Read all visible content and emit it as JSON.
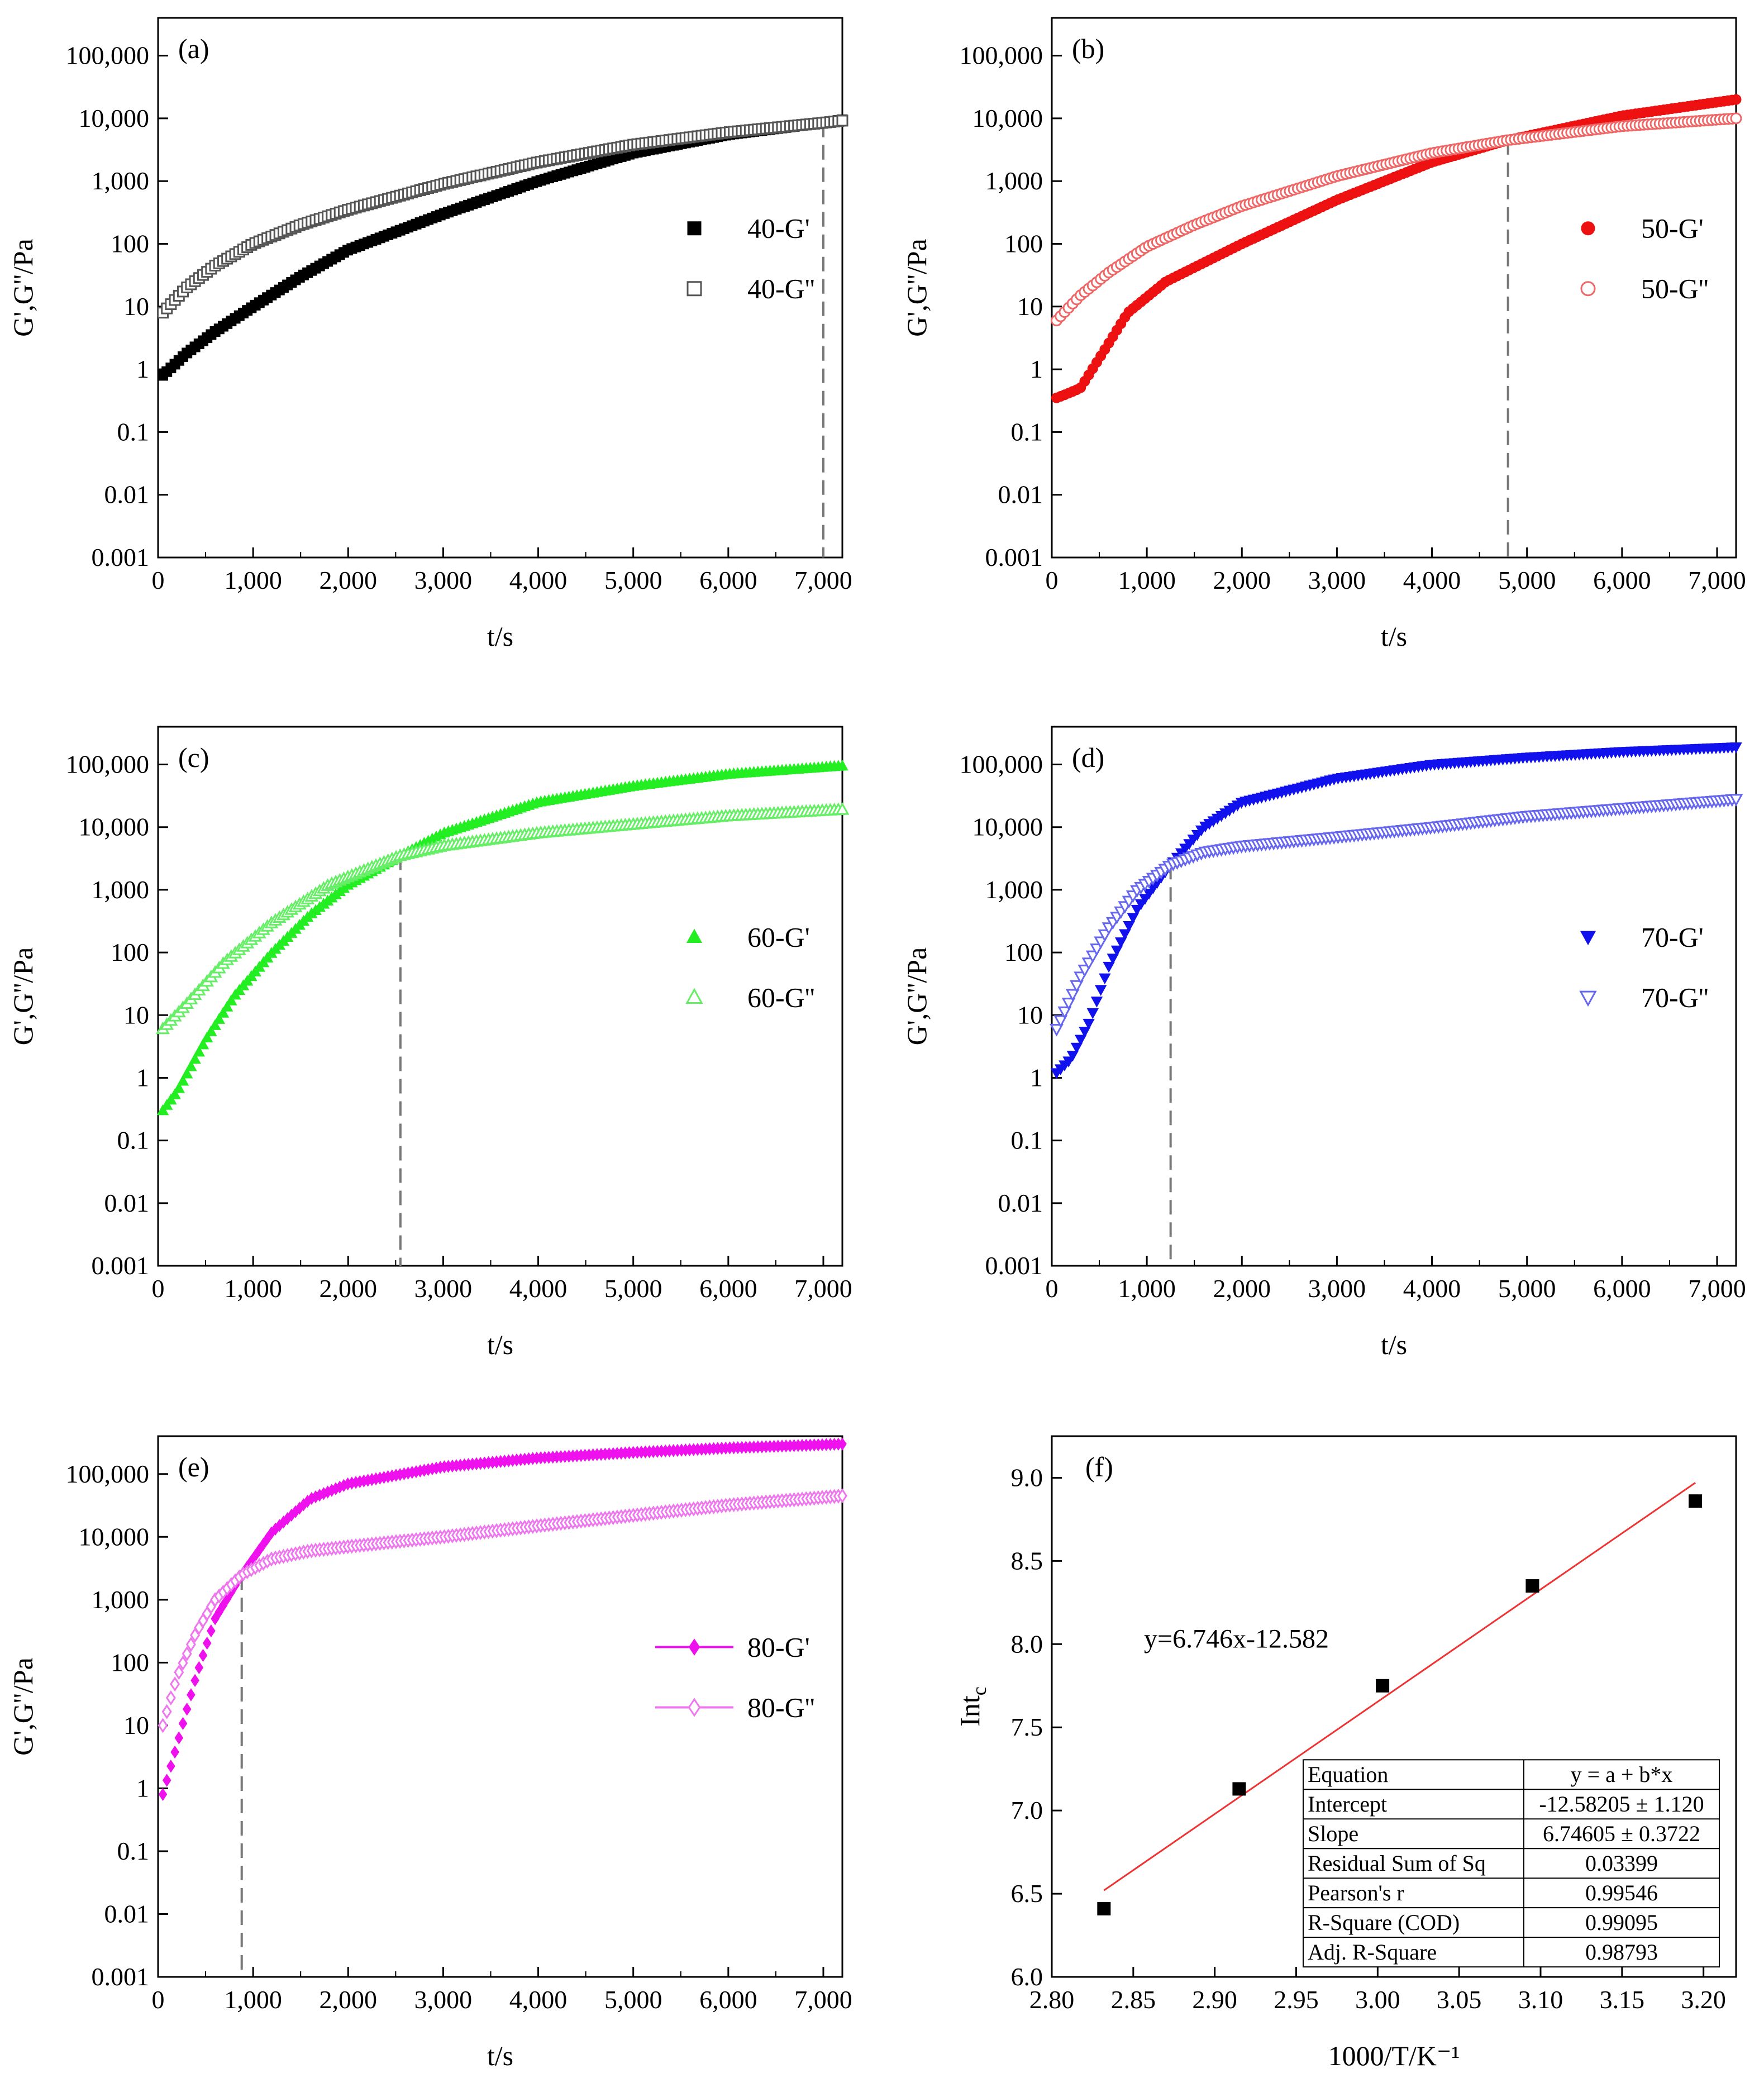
{
  "chart_data": [
    {
      "panel": "(a)",
      "type": "scatter",
      "yscale": "log",
      "xlabel": "t/s",
      "ylabel": "G',G''/Pa",
      "xlim": [
        0,
        7200
      ],
      "ylim": [
        0.001,
        400000
      ],
      "xticks": [
        0,
        1000,
        2000,
        3000,
        4000,
        5000,
        6000,
        7000
      ],
      "xtick_labels": [
        "0",
        "1,000",
        "2,000",
        "3,000",
        "4,000",
        "5,000",
        "6,000",
        "7,000"
      ],
      "yticks": [
        0.001,
        0.01,
        0.1,
        1,
        10,
        100,
        1000,
        10000,
        100000
      ],
      "ytick_labels": [
        "0.001",
        "0.01",
        "0.1",
        "1",
        "10",
        "100",
        "1,000",
        "10,000",
        "100,000"
      ],
      "legend_position": "right-middle",
      "crossover_t": 7000,
      "series": [
        {
          "name": "40-G'",
          "color": "#000000",
          "marker": "square",
          "filled": true,
          "x": [
            50,
            300,
            600,
            1000,
            1500,
            2000,
            3000,
            4000,
            5000,
            6000,
            7000,
            7200
          ],
          "y": [
            0.8,
            1.8,
            4,
            10,
            30,
            80,
            300,
            1000,
            2800,
            5500,
            8500,
            9500
          ]
        },
        {
          "name": "40-G''",
          "color": "#555555",
          "marker": "square",
          "filled": false,
          "x": [
            50,
            300,
            600,
            1000,
            1500,
            2000,
            3000,
            4000,
            5000,
            6000,
            7000,
            7200
          ],
          "y": [
            8,
            20,
            45,
            100,
            200,
            350,
            900,
            2000,
            3800,
            6000,
            8500,
            9200
          ]
        }
      ]
    },
    {
      "panel": "(b)",
      "type": "scatter",
      "yscale": "log",
      "xlabel": "t/s",
      "ylabel": "G',G''/Pa",
      "xlim": [
        0,
        7200
      ],
      "ylim": [
        0.001,
        400000
      ],
      "xticks": [
        0,
        1000,
        2000,
        3000,
        4000,
        5000,
        6000,
        7000
      ],
      "xtick_labels": [
        "0",
        "1,000",
        "2,000",
        "3,000",
        "4,000",
        "5,000",
        "6,000",
        "7,000"
      ],
      "yticks": [
        0.001,
        0.01,
        0.1,
        1,
        10,
        100,
        1000,
        10000,
        100000
      ],
      "ytick_labels": [
        "0.001",
        "0.01",
        "0.1",
        "1",
        "10",
        "100",
        "1,000",
        "10,000",
        "100,000"
      ],
      "legend_position": "right-middle",
      "crossover_t": 4800,
      "series": [
        {
          "name": "50-G'",
          "color": "#ee1111",
          "marker": "circle",
          "filled": true,
          "x": [
            50,
            150,
            300,
            500,
            800,
            1200,
            2000,
            3000,
            4000,
            4800,
            6000,
            7200
          ],
          "y": [
            0.35,
            0.4,
            0.5,
            1.5,
            8,
            25,
            100,
            500,
            2000,
            4500,
            11000,
            20000
          ]
        },
        {
          "name": "50-G''",
          "color": "#ee6666",
          "marker": "circle",
          "filled": false,
          "x": [
            50,
            300,
            600,
            1000,
            1500,
            2000,
            3000,
            4000,
            4800,
            6000,
            7200
          ],
          "y": [
            6,
            15,
            35,
            90,
            200,
            400,
            1200,
            2800,
            4500,
            7500,
            10000
          ]
        }
      ]
    },
    {
      "panel": "(c)",
      "type": "scatter",
      "yscale": "log",
      "xlabel": "t/s",
      "ylabel": "G',G''/Pa",
      "xlim": [
        0,
        7200
      ],
      "ylim": [
        0.001,
        400000
      ],
      "xticks": [
        0,
        1000,
        2000,
        3000,
        4000,
        5000,
        6000,
        7000
      ],
      "xtick_labels": [
        "0",
        "1,000",
        "2,000",
        "3,000",
        "4,000",
        "5,000",
        "6,000",
        "7,000"
      ],
      "yticks": [
        0.001,
        0.01,
        0.1,
        1,
        10,
        100,
        1000,
        10000,
        100000
      ],
      "ytick_labels": [
        "0.001",
        "0.01",
        "0.1",
        "1",
        "10",
        "100",
        "1,000",
        "10,000",
        "100,000"
      ],
      "legend_position": "right-middle",
      "crossover_t": 2550,
      "series": [
        {
          "name": "60-G'",
          "color": "#22ee22",
          "marker": "triangle-up",
          "filled": true,
          "x": [
            50,
            200,
            500,
            800,
            1200,
            1600,
            2000,
            2550,
            3000,
            4000,
            5000,
            6000,
            7200
          ],
          "y": [
            0.3,
            0.6,
            4,
            20,
            100,
            400,
            1200,
            3500,
            8000,
            25000,
            45000,
            70000,
            95000
          ]
        },
        {
          "name": "60-G''",
          "color": "#66ee66",
          "marker": "triangle-up",
          "filled": false,
          "x": [
            50,
            300,
            700,
            1200,
            1800,
            2550,
            3000,
            4000,
            5000,
            6000,
            7200
          ],
          "y": [
            6,
            15,
            70,
            300,
            1200,
            3500,
            5000,
            8000,
            11000,
            15000,
            19000
          ]
        }
      ]
    },
    {
      "panel": "(d)",
      "type": "scatter",
      "yscale": "log",
      "xlabel": "t/s",
      "ylabel": "G',G''/Pa",
      "xlim": [
        0,
        7200
      ],
      "ylim": [
        0.001,
        400000
      ],
      "xticks": [
        0,
        1000,
        2000,
        3000,
        4000,
        5000,
        6000,
        7000
      ],
      "xtick_labels": [
        "0",
        "1,000",
        "2,000",
        "3,000",
        "4,000",
        "5,000",
        "6,000",
        "7,000"
      ],
      "yticks": [
        0.001,
        0.01,
        0.1,
        1,
        10,
        100,
        1000,
        10000,
        100000
      ],
      "ytick_labels": [
        "0.001",
        "0.01",
        "0.1",
        "1",
        "10",
        "100",
        "1,000",
        "10,000",
        "100,000"
      ],
      "legend_position": "right-middle",
      "crossover_t": 1250,
      "series": [
        {
          "name": "70-G'",
          "color": "#1111ee",
          "marker": "triangle-down",
          "filled": true,
          "x": [
            50,
            200,
            400,
            600,
            900,
            1250,
            1600,
            2000,
            3000,
            4000,
            5000,
            6000,
            7200
          ],
          "y": [
            1.2,
            2,
            8,
            60,
            500,
            2500,
            10000,
            25000,
            60000,
            100000,
            130000,
            160000,
            190000
          ]
        },
        {
          "name": "70-G''",
          "color": "#6666ee",
          "marker": "triangle-down",
          "filled": false,
          "x": [
            50,
            300,
            600,
            900,
            1250,
            1600,
            2000,
            3000,
            4000,
            5000,
            6000,
            7200
          ],
          "y": [
            6,
            40,
            250,
            1000,
            2500,
            4000,
            5000,
            7000,
            10000,
            15000,
            20000,
            28000
          ]
        }
      ]
    },
    {
      "panel": "(e)",
      "type": "scatter",
      "yscale": "log",
      "xlabel": "t/s",
      "ylabel": "G',G''/Pa",
      "xlim": [
        0,
        7200
      ],
      "ylim": [
        0.001,
        400000
      ],
      "xticks": [
        0,
        1000,
        2000,
        3000,
        4000,
        5000,
        6000,
        7000
      ],
      "xtick_labels": [
        "0",
        "1,000",
        "2,000",
        "3,000",
        "4,000",
        "5,000",
        "6,000",
        "7,000"
      ],
      "yticks": [
        0.001,
        0.01,
        0.1,
        1,
        10,
        100,
        1000,
        10000,
        100000
      ],
      "ytick_labels": [
        "0.001",
        "0.01",
        "0.1",
        "1",
        "10",
        "100",
        "1,000",
        "10,000",
        "100,000"
      ],
      "legend_position": "right-middle",
      "legend_style": "line-marker",
      "crossover_t": 880,
      "series": [
        {
          "name": "80-G'",
          "color": "#ee11ee",
          "marker": "diamond",
          "filled": true,
          "x": [
            50,
            200,
            400,
            600,
            880,
            1200,
            1600,
            2000,
            3000,
            4000,
            5000,
            6000,
            7200
          ],
          "y": [
            0.8,
            5,
            60,
            500,
            2500,
            12000,
            40000,
            70000,
            130000,
            180000,
            220000,
            260000,
            300000
          ]
        },
        {
          "name": "80-G''",
          "color": "#ee77ee",
          "marker": "diamond",
          "filled": false,
          "x": [
            50,
            200,
            400,
            600,
            880,
            1200,
            1600,
            2000,
            3000,
            4000,
            5000,
            6000,
            7200
          ],
          "y": [
            10,
            60,
            300,
            1000,
            2500,
            4500,
            6000,
            7000,
            10000,
            15000,
            22000,
            32000,
            45000
          ]
        }
      ]
    },
    {
      "panel": "(f)",
      "type": "scatter",
      "xlabel": "1000/T/K⁻¹",
      "ylabel_main": "Int",
      "ylabel_sub": "c",
      "xlim": [
        2.8,
        3.22
      ],
      "ylim": [
        6.0,
        9.25
      ],
      "xticks": [
        2.8,
        2.85,
        2.9,
        2.95,
        3.0,
        3.05,
        3.1,
        3.15,
        3.2
      ],
      "xtick_labels": [
        "2.80",
        "2.85",
        "2.90",
        "2.95",
        "3.00",
        "3.05",
        "3.10",
        "3.15",
        "3.20"
      ],
      "yticks": [
        6.0,
        6.5,
        7.0,
        7.5,
        8.0,
        8.5,
        9.0
      ],
      "ytick_labels": [
        "6.0",
        "6.5",
        "7.0",
        "7.5",
        "8.0",
        "8.5",
        "9.0"
      ],
      "points": {
        "x": [
          2.832,
          2.915,
          3.003,
          3.095,
          3.195
        ],
        "y": [
          6.41,
          7.13,
          7.75,
          8.35,
          8.86
        ],
        "color": "#000000"
      },
      "fit": {
        "x": [
          2.832,
          3.195
        ],
        "y": [
          6.52,
          8.97
        ],
        "color": "#ee3333"
      },
      "equation_label": "y=6.746x-12.582",
      "stats_table": [
        [
          "Equation",
          "y = a + b*x"
        ],
        [
          "Intercept",
          "-12.58205 ± 1.120"
        ],
        [
          "Slope",
          "6.74605 ± 0.3722"
        ],
        [
          "Residual Sum of Sq",
          "0.03399"
        ],
        [
          "Pearson's r",
          "0.99546"
        ],
        [
          "R-Square (COD)",
          "0.99095"
        ],
        [
          "Adj. R-Square",
          "0.98793"
        ]
      ]
    }
  ]
}
